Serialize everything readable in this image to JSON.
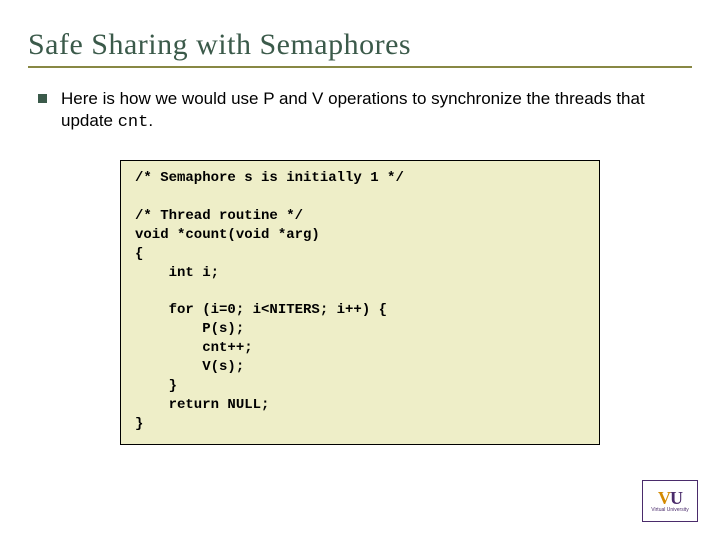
{
  "title": "Safe Sharing with Semaphores",
  "bullet_text_pre": "Here is how we would  use P and V operations to synchronize the threads that update ",
  "bullet_code": "cnt",
  "bullet_text_post": ".",
  "code": "/* Semaphore s is initially 1 */\n\n/* Thread routine */\nvoid *count(void *arg)\n{\n    int i;\n\n    for (i=0; i<NITERS; i++) {\n        P(s);\n        cnt++;\n        V(s);\n    }\n    return NULL;\n}",
  "logo": {
    "v": "V",
    "u": "U",
    "sub": "Virtual University"
  },
  "colors": {
    "title": "#3b5a4a",
    "rule": "#888844",
    "bullet": "#3b5a4a",
    "code_bg": "#eeeec8",
    "code_border": "#000000",
    "logo_orange": "#d48a00",
    "logo_purple": "#4a2b6b",
    "background": "#ffffff"
  },
  "typography": {
    "title_fontsize": 30,
    "body_fontsize": 17,
    "code_fontsize": 14,
    "code_fontweight": "bold"
  },
  "layout": {
    "slide_width": 720,
    "slide_height": 540,
    "code_box_width": 480
  }
}
